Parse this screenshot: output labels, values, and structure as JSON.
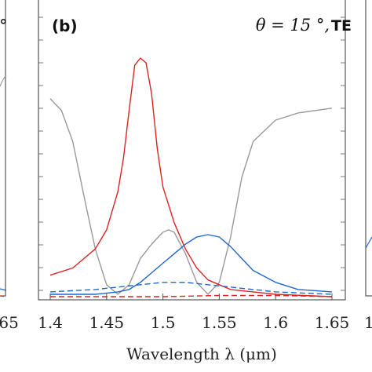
{
  "chart_data": {
    "type": "line",
    "panel_label": "(b)",
    "condition": {
      "angle_text": "θ = 15 °,",
      "polarization": "TE"
    },
    "left_panel_fragments": {
      "tick_label": ".65",
      "text": "°"
    },
    "right_panel_fragments": {
      "tick_label": "1"
    },
    "xlabel": "Wavelength λ (μm)",
    "xlim": [
      1.4,
      1.65
    ],
    "ylim": [
      0,
      1
    ],
    "x_ticks": [
      1.4,
      1.45,
      1.5,
      1.55,
      1.6,
      1.65
    ],
    "x_tick_labels": [
      "1.4",
      "1.45",
      "1.5",
      "1.55",
      "1.6",
      "1.65"
    ],
    "series": [
      {
        "color": "#999999",
        "dash": "solid",
        "x": [
          1.4,
          1.41,
          1.42,
          1.43,
          1.44,
          1.45,
          1.46,
          1.47,
          1.48,
          1.49,
          1.5,
          1.505,
          1.51,
          1.52,
          1.53,
          1.54,
          1.55,
          1.56,
          1.57,
          1.58,
          1.6,
          1.62,
          1.65
        ],
        "y": [
          0.83,
          0.78,
          0.65,
          0.42,
          0.2,
          0.05,
          0.01,
          0.05,
          0.16,
          0.22,
          0.27,
          0.28,
          0.27,
          0.18,
          0.06,
          0.01,
          0.06,
          0.25,
          0.5,
          0.65,
          0.74,
          0.77,
          0.79
        ]
      },
      {
        "color": "#dd2222",
        "dash": "solid",
        "x": [
          1.4,
          1.42,
          1.44,
          1.45,
          1.46,
          1.465,
          1.47,
          1.475,
          1.48,
          1.485,
          1.49,
          1.495,
          1.5,
          1.51,
          1.52,
          1.53,
          1.54,
          1.55,
          1.56,
          1.58,
          1.6,
          1.65
        ],
        "y": [
          0.09,
          0.12,
          0.2,
          0.28,
          0.44,
          0.58,
          0.78,
          0.97,
          1.0,
          0.98,
          0.85,
          0.62,
          0.46,
          0.31,
          0.2,
          0.12,
          0.07,
          0.05,
          0.03,
          0.02,
          0.01,
          0.0
        ]
      },
      {
        "color": "#1f66cc",
        "dash": "solid",
        "x": [
          1.4,
          1.44,
          1.46,
          1.47,
          1.48,
          1.49,
          1.5,
          1.51,
          1.52,
          1.53,
          1.54,
          1.55,
          1.56,
          1.57,
          1.58,
          1.6,
          1.62,
          1.65
        ],
        "y": [
          0.01,
          0.01,
          0.02,
          0.03,
          0.06,
          0.1,
          0.14,
          0.18,
          0.22,
          0.25,
          0.26,
          0.25,
          0.21,
          0.16,
          0.11,
          0.06,
          0.03,
          0.02
        ]
      },
      {
        "color": "#1f66cc",
        "dash": "dashed",
        "x": [
          1.4,
          1.44,
          1.46,
          1.48,
          1.5,
          1.52,
          1.54,
          1.56,
          1.58,
          1.6,
          1.65
        ],
        "y": [
          0.02,
          0.03,
          0.04,
          0.05,
          0.06,
          0.06,
          0.05,
          0.04,
          0.03,
          0.02,
          0.01
        ]
      },
      {
        "color": "#dd2222",
        "dash": "dashed",
        "x": [
          1.4,
          1.45,
          1.5,
          1.55,
          1.6,
          1.65
        ],
        "y": [
          0.0,
          0.0,
          0.0,
          0.005,
          0.005,
          0.0
        ]
      }
    ]
  }
}
